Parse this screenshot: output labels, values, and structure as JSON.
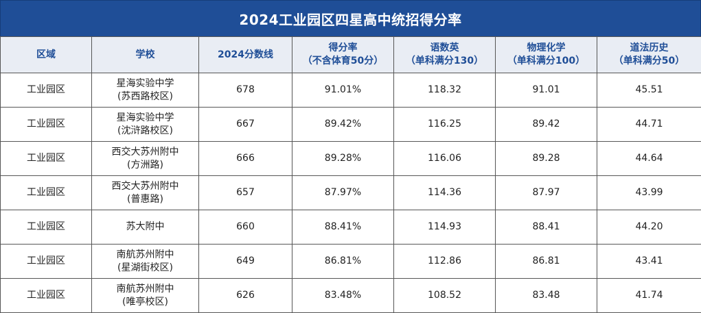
{
  "title": "2024工业园区四星高中统招得分率",
  "headers": [
    {
      "line1": "区域",
      "line2": ""
    },
    {
      "line1": "学校",
      "line2": ""
    },
    {
      "line1": "2024分数线",
      "line2": ""
    },
    {
      "line1": "得分率",
      "line2": "（不含体育50分）"
    },
    {
      "line1": "语数英",
      "line2": "（单科满分130）"
    },
    {
      "line1": "物理化学",
      "line2": "（单科满分100）"
    },
    {
      "line1": "道法历史",
      "line2": "（单科满分50）"
    }
  ],
  "rows": [
    {
      "region": "工业园区",
      "school_line1": "星海实验中学",
      "school_line2": "(苏西路校区)",
      "cutoff": "678",
      "rate": "91.01%",
      "cme": "118.32",
      "pc": "91.01",
      "ph": "45.51"
    },
    {
      "region": "工业园区",
      "school_line1": "星海实验中学",
      "school_line2": "(沈浒路校区)",
      "cutoff": "667",
      "rate": "89.42%",
      "cme": "116.25",
      "pc": "89.42",
      "ph": "44.71"
    },
    {
      "region": "工业园区",
      "school_line1": "西交大苏州附中",
      "school_line2": "(方洲路)",
      "cutoff": "666",
      "rate": "89.28%",
      "cme": "116.06",
      "pc": "89.28",
      "ph": "44.64"
    },
    {
      "region": "工业园区",
      "school_line1": "西交大苏州附中",
      "school_line2": "(普惠路)",
      "cutoff": "657",
      "rate": "87.97%",
      "cme": "114.36",
      "pc": "87.97",
      "ph": "43.99"
    },
    {
      "region": "工业园区",
      "school_line1": "苏大附中",
      "school_line2": "",
      "cutoff": "660",
      "rate": "88.41%",
      "cme": "114.93",
      "pc": "88.41",
      "ph": "44.20"
    },
    {
      "region": "工业园区",
      "school_line1": "南航苏州附中",
      "school_line2": "(星湖街校区)",
      "cutoff": "649",
      "rate": "86.81%",
      "cme": "112.86",
      "pc": "86.81",
      "ph": "43.41"
    },
    {
      "region": "工业园区",
      "school_line1": "南航苏州附中",
      "school_line2": "(唯亭校区)",
      "cutoff": "626",
      "rate": "83.48%",
      "cme": "108.52",
      "pc": "83.48",
      "ph": "41.74"
    }
  ]
}
